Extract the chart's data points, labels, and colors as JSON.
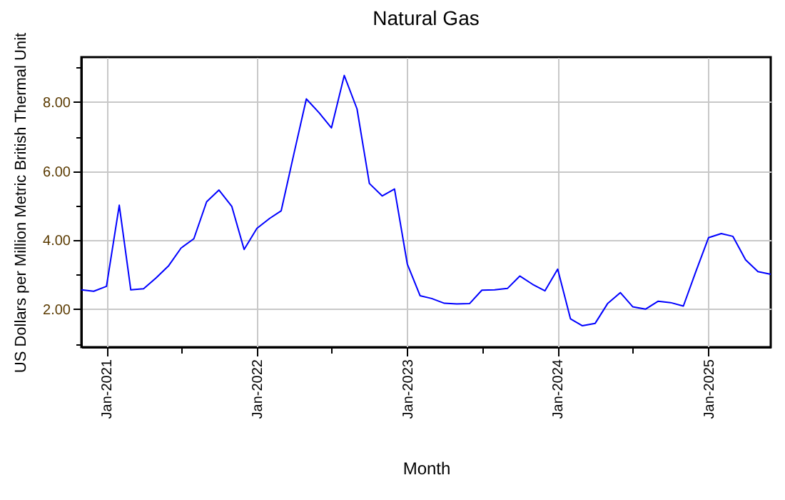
{
  "chart_data": {
    "type": "line",
    "title": "Natural Gas",
    "xlabel": "Month",
    "ylabel": "US Dollars per Million Metric British Thermal Unit",
    "x": [
      "2020-11",
      "2020-12",
      "2021-01",
      "2021-02",
      "2021-03",
      "2021-04",
      "2021-05",
      "2021-06",
      "2021-07",
      "2021-08",
      "2021-09",
      "2021-10",
      "2021-11",
      "2021-12",
      "2022-01",
      "2022-02",
      "2022-03",
      "2022-04",
      "2022-05",
      "2022-06",
      "2022-07",
      "2022-08",
      "2022-09",
      "2022-10",
      "2022-11",
      "2022-12",
      "2023-01",
      "2023-02",
      "2023-03",
      "2023-04",
      "2023-05",
      "2023-06",
      "2023-07",
      "2023-08",
      "2023-09",
      "2023-10",
      "2023-11",
      "2023-12",
      "2024-01",
      "2024-02",
      "2024-03",
      "2024-04",
      "2024-05",
      "2024-06",
      "2024-07",
      "2024-08",
      "2024-09",
      "2024-10",
      "2024-11",
      "2024-12",
      "2025-01",
      "2025-02",
      "2025-03",
      "2025-04",
      "2025-05",
      "2025-06"
    ],
    "series": [
      {
        "color": "#0000ff",
        "values": [
          2.56,
          2.52,
          2.66,
          5.01,
          2.56,
          2.59,
          2.9,
          3.26,
          3.77,
          4.04,
          5.11,
          5.45,
          4.98,
          3.73,
          4.34,
          4.63,
          4.85,
          6.51,
          8.09,
          7.69,
          7.25,
          8.77,
          7.8,
          5.64,
          5.28,
          5.48,
          3.31,
          2.39,
          2.31,
          2.17,
          2.15,
          2.16,
          2.55,
          2.56,
          2.6,
          2.96,
          2.72,
          2.53,
          3.16,
          1.72,
          1.52,
          1.59,
          2.16,
          2.48,
          2.07,
          2.0,
          2.23,
          2.19,
          2.09,
          3.08,
          4.07,
          4.19,
          4.11,
          3.43,
          3.09,
          3.01
        ]
      }
    ],
    "xlim": [
      "2020-11",
      "2025-06"
    ],
    "xticks": [
      {
        "value": "2021-01",
        "label": "Jan-2021"
      },
      {
        "value": "2021-07",
        "label": null
      },
      {
        "value": "2022-01",
        "label": "Jan-2022"
      },
      {
        "value": "2022-07",
        "label": null
      },
      {
        "value": "2023-01",
        "label": "Jan-2023"
      },
      {
        "value": "2023-07",
        "label": null
      },
      {
        "value": "2024-01",
        "label": "Jan-2024"
      },
      {
        "value": "2024-07",
        "label": null
      },
      {
        "value": "2025-01",
        "label": "Jan-2025"
      }
    ],
    "ylim": [
      0.9,
      9.3
    ],
    "yticks": [
      {
        "value": 1,
        "label": null
      },
      {
        "value": 2,
        "label": "2.00"
      },
      {
        "value": 3,
        "label": null
      },
      {
        "value": 4,
        "label": "4.00"
      },
      {
        "value": 5,
        "label": null
      },
      {
        "value": 6,
        "label": "6.00"
      },
      {
        "value": 7,
        "label": null
      },
      {
        "value": 8,
        "label": "8.00"
      },
      {
        "value": 9,
        "label": null
      }
    ],
    "grid": true,
    "line_style": "solid",
    "marker": "none"
  }
}
